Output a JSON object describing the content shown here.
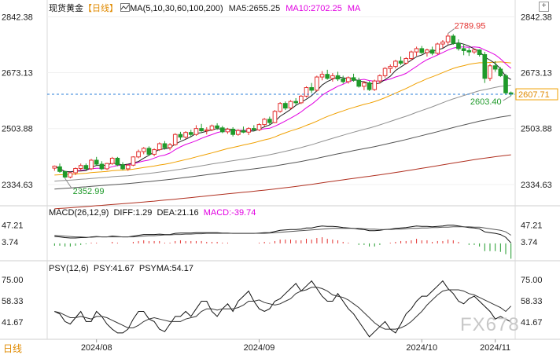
{
  "header": {
    "symbol": "现货黄金",
    "period": "【日线】",
    "ma_params": "MA(5,10,30,60,100,200)",
    "ma5_label": "MA5:2655.25",
    "ma10_label": "MA10:2702.25",
    "ma_more": "MA"
  },
  "macd_header": {
    "params": "MACD(26,12,9)",
    "diff_label": "DIFF:1.29",
    "dea_label": "DEA:21.16",
    "macd_label": "MACD:-39.74"
  },
  "psy_header": {
    "params": "PSY(12,6)",
    "psy_label": "PSY:41.67",
    "psyma_label": "PSYMA:54.17"
  },
  "bottom_tab": "日线",
  "watermark": "FX678",
  "colors": {
    "up": "#e3312f",
    "down": "#1f9a2a",
    "ma5": "#222222",
    "ma10": "#e100e1",
    "ma30": "#f0a000",
    "ma60": "#909090",
    "ma100": "#555555",
    "ma200": "#b03020",
    "current": "#2b7fd8",
    "psy": "#111111",
    "psyma": "#333333"
  },
  "chart_data": [
    {
      "type": "candlestick",
      "y_ticks": [
        "2842.38",
        "2673.13",
        "2503.88",
        "2334.63"
      ],
      "ylim": [
        2270,
        2860
      ],
      "x_labels": [
        "2024/08",
        "2024/09",
        "2024/10",
        "2024/11"
      ],
      "annotations": {
        "high": "2789.95",
        "low_left": "2352.99",
        "low_right": "2603.40",
        "current_price": "2607.71"
      },
      "candles": [
        [
          2384,
          2392,
          2376,
          2390
        ],
        [
          2388,
          2398,
          2370,
          2374
        ],
        [
          2374,
          2376,
          2353,
          2357
        ],
        [
          2357,
          2372,
          2353,
          2370
        ],
        [
          2370,
          2386,
          2363,
          2383
        ],
        [
          2383,
          2398,
          2377,
          2392
        ],
        [
          2392,
          2398,
          2378,
          2382
        ],
        [
          2382,
          2412,
          2378,
          2408
        ],
        [
          2408,
          2418,
          2392,
          2396
        ],
        [
          2396,
          2405,
          2378,
          2382
        ],
        [
          2382,
          2400,
          2378,
          2398
        ],
        [
          2398,
          2418,
          2394,
          2414
        ],
        [
          2414,
          2418,
          2390,
          2394
        ],
        [
          2394,
          2402,
          2378,
          2382
        ],
        [
          2382,
          2396,
          2376,
          2393
        ],
        [
          2393,
          2420,
          2390,
          2418
        ],
        [
          2418,
          2440,
          2414,
          2434
        ],
        [
          2434,
          2448,
          2426,
          2444
        ],
        [
          2444,
          2450,
          2422,
          2426
        ],
        [
          2426,
          2444,
          2420,
          2440
        ],
        [
          2440,
          2462,
          2436,
          2458
        ],
        [
          2458,
          2466,
          2440,
          2446
        ],
        [
          2446,
          2460,
          2438,
          2455
        ],
        [
          2455,
          2490,
          2452,
          2486
        ],
        [
          2486,
          2494,
          2470,
          2478
        ],
        [
          2478,
          2496,
          2472,
          2492
        ],
        [
          2492,
          2500,
          2480,
          2486
        ],
        [
          2486,
          2514,
          2482,
          2504
        ],
        [
          2504,
          2518,
          2494,
          2497
        ],
        [
          2497,
          2508,
          2486,
          2500
        ],
        [
          2500,
          2516,
          2496,
          2512
        ],
        [
          2512,
          2520,
          2500,
          2506
        ],
        [
          2506,
          2512,
          2490,
          2494
        ],
        [
          2494,
          2506,
          2488,
          2502
        ],
        [
          2502,
          2508,
          2480,
          2486
        ],
        [
          2486,
          2502,
          2482,
          2498
        ],
        [
          2498,
          2510,
          2490,
          2493
        ],
        [
          2493,
          2508,
          2484,
          2504
        ],
        [
          2504,
          2514,
          2496,
          2500
        ],
        [
          2500,
          2520,
          2496,
          2516
        ],
        [
          2516,
          2536,
          2510,
          2532
        ],
        [
          2532,
          2540,
          2516,
          2522
        ],
        [
          2522,
          2560,
          2520,
          2556
        ],
        [
          2556,
          2584,
          2552,
          2580
        ],
        [
          2580,
          2586,
          2560,
          2566
        ],
        [
          2566,
          2590,
          2562,
          2586
        ],
        [
          2586,
          2596,
          2574,
          2582
        ],
        [
          2582,
          2606,
          2578,
          2602
        ],
        [
          2602,
          2632,
          2598,
          2628
        ],
        [
          2628,
          2642,
          2612,
          2620
        ],
        [
          2620,
          2664,
          2616,
          2660
        ],
        [
          2660,
          2678,
          2650,
          2668
        ],
        [
          2668,
          2682,
          2652,
          2656
        ],
        [
          2656,
          2672,
          2646,
          2664
        ],
        [
          2664,
          2676,
          2648,
          2654
        ],
        [
          2654,
          2664,
          2640,
          2646
        ],
        [
          2646,
          2662,
          2640,
          2658
        ],
        [
          2658,
          2670,
          2646,
          2650
        ],
        [
          2650,
          2658,
          2628,
          2632
        ],
        [
          2632,
          2648,
          2620,
          2642
        ],
        [
          2642,
          2648,
          2618,
          2622
        ],
        [
          2622,
          2652,
          2618,
          2648
        ],
        [
          2648,
          2668,
          2640,
          2664
        ],
        [
          2664,
          2690,
          2658,
          2686
        ],
        [
          2686,
          2698,
          2672,
          2692
        ],
        [
          2692,
          2712,
          2686,
          2708
        ],
        [
          2708,
          2722,
          2696,
          2702
        ],
        [
          2702,
          2720,
          2698,
          2716
        ],
        [
          2716,
          2740,
          2710,
          2736
        ],
        [
          2736,
          2752,
          2724,
          2746
        ],
        [
          2746,
          2754,
          2730,
          2734
        ],
        [
          2734,
          2746,
          2722,
          2742
        ],
        [
          2742,
          2752,
          2726,
          2732
        ],
        [
          2732,
          2764,
          2728,
          2760
        ],
        [
          2760,
          2772,
          2748,
          2766
        ],
        [
          2766,
          2792,
          2758,
          2784
        ],
        [
          2784,
          2790,
          2758,
          2762
        ],
        [
          2762,
          2774,
          2740,
          2746
        ],
        [
          2746,
          2760,
          2726,
          2740
        ],
        [
          2740,
          2748,
          2724,
          2736
        ],
        [
          2736,
          2746,
          2730,
          2742
        ],
        [
          2742,
          2744,
          2722,
          2728
        ],
        [
          2728,
          2736,
          2642,
          2656
        ],
        [
          2656,
          2700,
          2648,
          2694
        ],
        [
          2694,
          2708,
          2676,
          2684
        ],
        [
          2684,
          2690,
          2660,
          2664
        ],
        [
          2664,
          2670,
          2606,
          2612
        ],
        [
          2612,
          2616,
          2603,
          2608
        ]
      ],
      "low_left_index": 2,
      "high_index": 75,
      "low_right_index": 87
    },
    {
      "type": "macd",
      "y_ticks": [
        "47.21",
        "3.74"
      ],
      "ylim": [
        -45,
        65
      ],
      "diff": [
        18,
        17,
        15,
        14,
        14,
        15,
        15,
        17,
        18,
        17,
        17,
        19,
        18,
        17,
        17,
        19,
        21,
        23,
        23,
        23,
        24,
        23,
        23,
        26,
        27,
        27,
        27,
        28,
        28,
        28,
        28,
        28,
        27,
        27,
        26,
        26,
        26,
        26,
        26,
        27,
        28,
        28,
        31,
        34,
        35,
        36,
        36,
        37,
        40,
        40,
        43,
        45,
        44,
        44,
        43,
        41,
        40,
        39,
        37,
        36,
        33,
        33,
        34,
        36,
        37,
        39,
        40,
        41,
        43,
        45,
        44,
        44,
        43,
        44,
        45,
        47,
        47,
        45,
        43,
        41,
        40,
        38,
        30,
        28,
        26,
        23,
        16,
        1.29
      ],
      "dea": [
        21,
        20,
        19,
        18,
        17,
        17,
        16,
        16,
        17,
        17,
        17,
        17,
        17,
        17,
        17,
        17,
        18,
        19,
        20,
        20,
        21,
        22,
        22,
        23,
        23,
        24,
        24,
        25,
        25,
        26,
        26,
        26,
        26,
        26,
        26,
        26,
        26,
        26,
        26,
        26,
        26,
        27,
        28,
        29,
        30,
        31,
        32,
        33,
        34,
        35,
        36,
        37,
        38,
        39,
        39,
        39,
        39,
        39,
        39,
        38,
        37,
        37,
        36,
        36,
        36,
        37,
        37,
        38,
        39,
        39,
        40,
        40,
        41,
        41,
        42,
        42,
        43,
        43,
        43,
        43,
        42,
        42,
        40,
        38,
        36,
        34,
        30,
        21.16
      ]
    },
    {
      "type": "psy",
      "y_ticks": [
        "75.00",
        "58.33",
        "41.67"
      ],
      "ylim": [
        28,
        80
      ],
      "psy": [
        50,
        48,
        42,
        40,
        45,
        50,
        42,
        42,
        50,
        46,
        40,
        36,
        33,
        33,
        36,
        44,
        50,
        50,
        44,
        42,
        36,
        34,
        40,
        46,
        46,
        50,
        46,
        52,
        58,
        58,
        50,
        46,
        52,
        56,
        50,
        58,
        62,
        66,
        58,
        52,
        50,
        52,
        58,
        60,
        64,
        68,
        72,
        66,
        70,
        74,
        68,
        62,
        58,
        58,
        64,
        58,
        52,
        48,
        42,
        36,
        30,
        34,
        38,
        42,
        36,
        33,
        40,
        48,
        52,
        58,
        62,
        62,
        66,
        70,
        74,
        68,
        64,
        58,
        56,
        60,
        62,
        58,
        54,
        50,
        44,
        46,
        44,
        41.67
      ],
      "psyma": [
        50,
        49,
        47,
        45,
        45,
        46,
        45,
        44,
        46,
        46,
        45,
        43,
        41,
        39,
        37,
        37,
        39,
        42,
        44,
        45,
        44,
        43,
        42,
        42,
        42,
        44,
        45,
        46,
        50,
        52,
        52,
        51,
        52,
        52,
        52,
        53,
        55,
        58,
        58,
        59,
        57,
        56,
        55,
        56,
        58,
        60,
        64,
        66,
        67,
        69,
        69,
        68,
        66,
        63,
        62,
        61,
        59,
        56,
        53,
        49,
        45,
        41,
        38,
        36,
        36,
        36,
        37,
        39,
        42,
        46,
        50,
        55,
        59,
        63,
        66,
        67,
        67,
        67,
        66,
        64,
        63,
        61,
        59,
        57,
        55,
        53,
        50,
        54.17
      ]
    }
  ]
}
